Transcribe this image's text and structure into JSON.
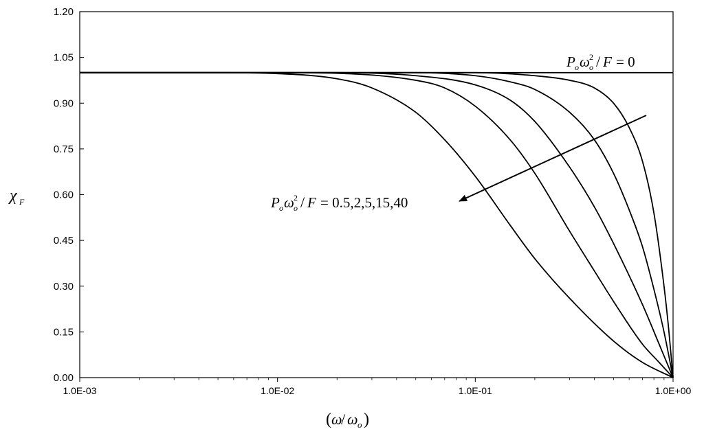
{
  "chart_data": {
    "type": "line",
    "title": "",
    "xlabel": "(ω/ωo)",
    "ylabel": "χF",
    "xscale": "log",
    "xlim": [
      0.001,
      1.0
    ],
    "ylim": [
      0.0,
      1.2
    ],
    "x_ticks": [
      "1.0E-03",
      "1.0E-02",
      "1.0E-01",
      "1.0E+00"
    ],
    "y_ticks": [
      "0.00",
      "0.15",
      "0.30",
      "0.45",
      "0.60",
      "0.75",
      "0.90",
      "1.05",
      "1.20"
    ],
    "grid": false,
    "line_color": "#000000",
    "series": [
      {
        "parameter": 0,
        "x": [
          0.001,
          0.01,
          0.1,
          1.0
        ],
        "y": [
          1.0,
          1.0,
          1.0,
          1.0
        ]
      },
      {
        "parameter": 0.5,
        "x": [
          0.001,
          0.005,
          0.01,
          0.02,
          0.03,
          0.05,
          0.07,
          0.1,
          0.15,
          0.2,
          0.3,
          0.5,
          0.7,
          1.0
        ],
        "y": [
          1.0,
          1.0,
          0.997,
          0.98,
          0.95,
          0.87,
          0.78,
          0.66,
          0.5,
          0.39,
          0.26,
          0.12,
          0.05,
          0.0
        ]
      },
      {
        "parameter": 2,
        "x": [
          0.001,
          0.01,
          0.02,
          0.05,
          0.07,
          0.1,
          0.15,
          0.2,
          0.3,
          0.4,
          0.5,
          0.7,
          0.85,
          1.0
        ],
        "y": [
          1.0,
          1.0,
          0.998,
          0.975,
          0.95,
          0.89,
          0.78,
          0.67,
          0.48,
          0.35,
          0.25,
          0.11,
          0.05,
          0.0
        ]
      },
      {
        "parameter": 5,
        "x": [
          0.001,
          0.01,
          0.02,
          0.05,
          0.1,
          0.15,
          0.2,
          0.3,
          0.4,
          0.5,
          0.7,
          0.85,
          1.0
        ],
        "y": [
          1.0,
          1.0,
          1.0,
          0.99,
          0.96,
          0.91,
          0.84,
          0.69,
          0.56,
          0.44,
          0.24,
          0.11,
          0.0
        ]
      },
      {
        "parameter": 15,
        "x": [
          0.001,
          0.01,
          0.05,
          0.1,
          0.15,
          0.2,
          0.3,
          0.4,
          0.5,
          0.6,
          0.7,
          0.8,
          0.9,
          1.0
        ],
        "y": [
          1.0,
          1.0,
          1.0,
          0.99,
          0.97,
          0.945,
          0.87,
          0.78,
          0.67,
          0.55,
          0.43,
          0.29,
          0.15,
          0.0
        ]
      },
      {
        "parameter": 40,
        "x": [
          0.001,
          0.01,
          0.05,
          0.1,
          0.2,
          0.3,
          0.4,
          0.5,
          0.6,
          0.7,
          0.8,
          0.9,
          0.95,
          1.0
        ],
        "y": [
          1.0,
          1.0,
          1.0,
          1.0,
          0.99,
          0.975,
          0.95,
          0.9,
          0.82,
          0.71,
          0.54,
          0.3,
          0.16,
          0.0
        ]
      }
    ],
    "annotations": [
      {
        "text": "Poωo²/F = 0",
        "at": [
          0.65,
          1.04
        ]
      },
      {
        "text": "Poωo²/F = 0.5,2,5,15,40",
        "arrow_from": [
          0.74,
          0.86
        ],
        "arrow_to": [
          0.1,
          0.58
        ]
      }
    ]
  }
}
